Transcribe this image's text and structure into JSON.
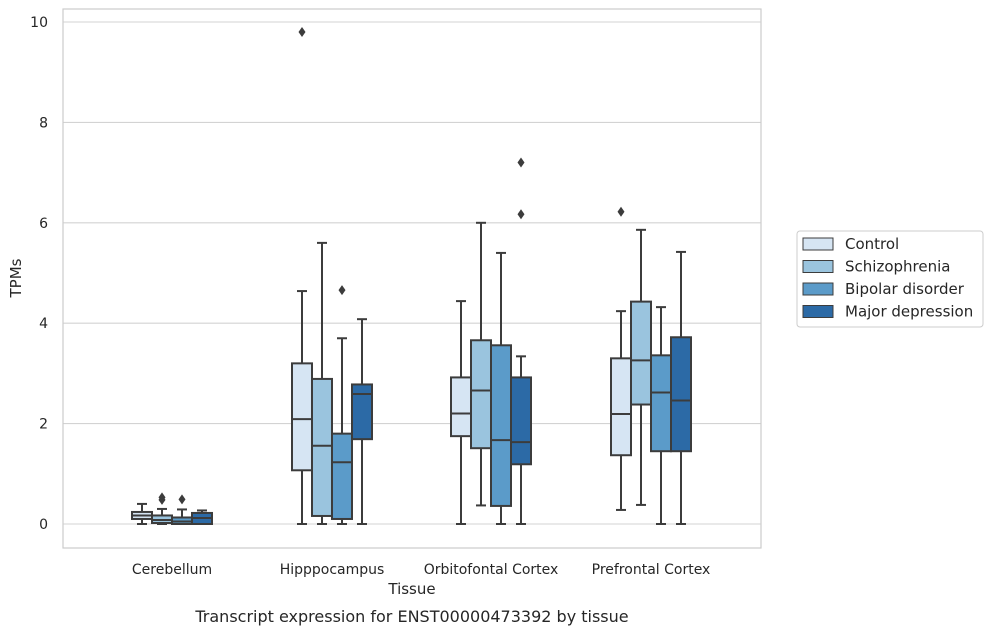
{
  "chart_data": {
    "type": "box",
    "title": "",
    "caption": "Transcript expression for ENST00000473392 by tissue",
    "xlabel": "Tissue",
    "ylabel": "TPMs",
    "ylim": [
      -0.45,
      10.3
    ],
    "yticks": [
      0,
      2,
      4,
      6,
      8,
      10
    ],
    "grid": true,
    "legend_position": "right",
    "categories": [
      "Cerebellum",
      "Hipppocampus",
      "Orbitofontal Cortex",
      "Prefrontal Cortex"
    ],
    "series": [
      {
        "name": "Control",
        "color": "#d6e5f3",
        "boxes": [
          {
            "whislo": 0.0,
            "q1": 0.1,
            "med": 0.17,
            "q3": 0.24,
            "whishi": 0.4,
            "fliers": []
          },
          {
            "whislo": 0.0,
            "q1": 1.07,
            "med": 2.09,
            "q3": 3.2,
            "whishi": 4.64,
            "fliers": [
              9.8
            ]
          },
          {
            "whislo": 0.0,
            "q1": 1.75,
            "med": 2.2,
            "q3": 2.92,
            "whishi": 4.44,
            "fliers": []
          },
          {
            "whislo": 0.28,
            "q1": 1.37,
            "med": 2.19,
            "q3": 3.3,
            "whishi": 4.24,
            "fliers": [
              6.22
            ]
          }
        ]
      },
      {
        "name": "Schizophrenia",
        "color": "#9ac4de",
        "boxes": [
          {
            "whislo": 0.0,
            "q1": 0.02,
            "med": 0.08,
            "q3": 0.17,
            "whishi": 0.3,
            "fliers": [
              0.48,
              0.53
            ]
          },
          {
            "whislo": 0.0,
            "q1": 0.16,
            "med": 1.56,
            "q3": 2.89,
            "whishi": 5.6,
            "fliers": []
          },
          {
            "whislo": 0.37,
            "q1": 1.51,
            "med": 2.66,
            "q3": 3.66,
            "whishi": 6.0,
            "fliers": []
          },
          {
            "whislo": 0.38,
            "q1": 2.38,
            "med": 3.26,
            "q3": 4.43,
            "whishi": 5.86,
            "fliers": []
          }
        ]
      },
      {
        "name": "Bipolar disorder",
        "color": "#5b9bc9",
        "boxes": [
          {
            "whislo": 0.0,
            "q1": 0.0,
            "med": 0.05,
            "q3": 0.13,
            "whishi": 0.29,
            "fliers": [
              0.49
            ]
          },
          {
            "whislo": 0.0,
            "q1": 0.1,
            "med": 1.23,
            "q3": 1.8,
            "whishi": 3.7,
            "fliers": [
              4.66
            ]
          },
          {
            "whislo": 0.0,
            "q1": 0.36,
            "med": 1.67,
            "q3": 3.56,
            "whishi": 5.4,
            "fliers": []
          },
          {
            "whislo": 0.0,
            "q1": 1.45,
            "med": 2.62,
            "q3": 3.36,
            "whishi": 4.32,
            "fliers": []
          }
        ]
      },
      {
        "name": "Major depression",
        "color": "#2c6aa6",
        "boxes": [
          {
            "whislo": 0.0,
            "q1": 0.0,
            "med": 0.12,
            "q3": 0.22,
            "whishi": 0.27,
            "fliers": []
          },
          {
            "whislo": 0.0,
            "q1": 1.69,
            "med": 2.59,
            "q3": 2.78,
            "whishi": 4.08,
            "fliers": []
          },
          {
            "whislo": 0.0,
            "q1": 1.19,
            "med": 1.63,
            "q3": 2.92,
            "whishi": 3.34,
            "fliers": [
              6.17,
              7.2
            ]
          },
          {
            "whislo": 0.0,
            "q1": 1.45,
            "med": 2.46,
            "q3": 3.72,
            "whishi": 5.42,
            "fliers": []
          }
        ]
      }
    ]
  }
}
